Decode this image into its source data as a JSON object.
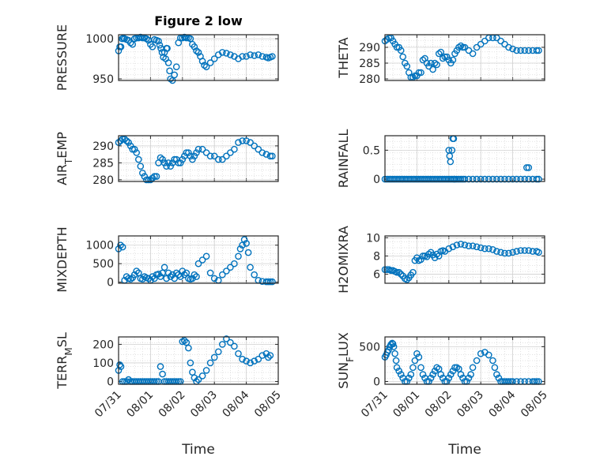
{
  "chart_data": [
    {
      "type": "scatter",
      "title": "Figure 2 low",
      "ylabel": "PRESSURE",
      "ylabel_parts": [
        {
          "t": "PRESSURE"
        }
      ],
      "ylim": [
        948,
        1005
      ],
      "yticks": [
        1000,
        950
      ],
      "ytick_labels": [
        "1000",
        "950"
      ],
      "xlim": [
        0,
        4
      ],
      "xtick_labels": [],
      "grid": true,
      "marker_color": "#0072BD",
      "x": [
        0.0,
        0.03,
        0.06,
        0.09,
        0.12,
        0.15,
        0.2,
        0.25,
        0.3,
        0.35,
        0.4,
        0.45,
        0.5,
        0.55,
        0.6,
        0.65,
        0.7,
        0.75,
        0.8,
        0.85,
        0.9,
        0.95,
        1.0,
        1.03,
        1.06,
        1.09,
        1.12,
        1.15,
        1.18,
        1.2,
        1.22,
        1.25,
        1.28,
        1.3,
        1.35,
        1.4,
        1.45,
        1.5,
        1.55,
        1.6,
        1.65,
        1.7,
        1.75,
        1.8,
        1.85,
        1.9,
        1.95,
        2.0,
        2.05,
        2.1,
        2.15,
        2.2,
        2.3,
        2.4,
        2.5,
        2.6,
        2.7,
        2.8,
        2.9,
        3.0,
        3.1,
        3.2,
        3.3,
        3.4,
        3.5,
        3.6,
        3.7,
        3.75,
        3.8,
        3.85
      ],
      "y": [
        985,
        990,
        990,
        1000,
        1001,
        1000,
        999,
        998,
        995,
        993,
        1000,
        1001,
        1001,
        1002,
        1001,
        1001,
        1000,
        998,
        993,
        990,
        999,
        998,
        997,
        992,
        988,
        983,
        977,
        983,
        975,
        988,
        988,
        970,
        960,
        950,
        948,
        955,
        965,
        995,
        1001,
        1001,
        1002,
        1001,
        1001,
        1000,
        993,
        990,
        985,
        983,
        978,
        972,
        967,
        965,
        970,
        975,
        980,
        983,
        982,
        980,
        978,
        975,
        978,
        978,
        980,
        979,
        980,
        978,
        977,
        976,
        977,
        978
      ]
    },
    {
      "type": "scatter",
      "title": "",
      "ylabel": "THETA",
      "ylabel_parts": [
        {
          "t": "THETA"
        }
      ],
      "ylim": [
        279.5,
        294
      ],
      "yticks": [
        290,
        285,
        280
      ],
      "ytick_labels": [
        "290",
        "285",
        "280"
      ],
      "xlim": [
        0,
        4
      ],
      "xtick_labels": [],
      "grid": true,
      "marker_color": "#0072BD",
      "x": [
        0.0,
        0.05,
        0.1,
        0.15,
        0.2,
        0.25,
        0.3,
        0.35,
        0.4,
        0.45,
        0.5,
        0.55,
        0.6,
        0.65,
        0.7,
        0.75,
        0.8,
        0.85,
        0.9,
        0.95,
        1.0,
        1.05,
        1.1,
        1.15,
        1.2,
        1.25,
        1.3,
        1.35,
        1.4,
        1.45,
        1.5,
        1.55,
        1.6,
        1.65,
        1.7,
        1.75,
        1.8,
        1.85,
        1.9,
        1.95,
        2.0,
        2.1,
        2.2,
        2.3,
        2.4,
        2.5,
        2.6,
        2.7,
        2.8,
        2.9,
        3.0,
        3.1,
        3.2,
        3.3,
        3.4,
        3.5,
        3.6,
        3.7,
        3.8,
        3.85
      ],
      "y": [
        292,
        292.5,
        293,
        293,
        292,
        291,
        290,
        290,
        289,
        287,
        285,
        284,
        282,
        280.5,
        280.5,
        281,
        281,
        282,
        282,
        286,
        286.5,
        285,
        284,
        285,
        283,
        285,
        284.5,
        288,
        288.5,
        286.5,
        287,
        287,
        286,
        285,
        286,
        288,
        289,
        290,
        290.5,
        290,
        290,
        289,
        288,
        290,
        291,
        292,
        293,
        293,
        293,
        292,
        291,
        290,
        289.5,
        289,
        289,
        289,
        289,
        289,
        289,
        289
      ]
    },
    {
      "type": "scatter",
      "title": "",
      "ylabel": "AIR_TEMP",
      "ylabel_parts": [
        {
          "t": "AIR"
        },
        {
          "t": "T",
          "sub": true
        },
        {
          "t": "EMP"
        }
      ],
      "ylim": [
        279.5,
        293
      ],
      "yticks": [
        290,
        285,
        280
      ],
      "ytick_labels": [
        "290",
        "285",
        "280"
      ],
      "xlim": [
        0,
        4
      ],
      "xtick_labels": [],
      "grid": true,
      "marker_color": "#0072BD",
      "x": [
        0.0,
        0.05,
        0.1,
        0.15,
        0.2,
        0.25,
        0.3,
        0.35,
        0.4,
        0.45,
        0.5,
        0.55,
        0.6,
        0.65,
        0.7,
        0.75,
        0.8,
        0.85,
        0.9,
        0.95,
        1.0,
        1.05,
        1.1,
        1.15,
        1.2,
        1.25,
        1.3,
        1.35,
        1.4,
        1.45,
        1.5,
        1.55,
        1.6,
        1.65,
        1.7,
        1.75,
        1.8,
        1.85,
        1.9,
        1.95,
        2.0,
        2.1,
        2.2,
        2.3,
        2.4,
        2.5,
        2.6,
        2.7,
        2.8,
        2.9,
        3.0,
        3.1,
        3.2,
        3.3,
        3.4,
        3.5,
        3.6,
        3.7,
        3.8,
        3.85
      ],
      "y": [
        291,
        291.5,
        292,
        292,
        291.5,
        291,
        290,
        289,
        289,
        288,
        286,
        284,
        282,
        281,
        280,
        280,
        280,
        280.5,
        281,
        281,
        285,
        286.5,
        286,
        285,
        284,
        285,
        284,
        285,
        286,
        286,
        285,
        285,
        286,
        287,
        288,
        288,
        287,
        286,
        287,
        288,
        289,
        289,
        288,
        287,
        287,
        286,
        286,
        287,
        288,
        289,
        291,
        291.5,
        291.5,
        291,
        290,
        289,
        288,
        287.5,
        287,
        287
      ]
    },
    {
      "type": "scatter",
      "title": "",
      "ylabel": "RAINFALL",
      "ylabel_parts": [
        {
          "t": "RAINFALL"
        }
      ],
      "ylim": [
        -0.04,
        0.75
      ],
      "yticks": [
        0.5,
        0
      ],
      "ytick_labels": [
        "0.5",
        "0"
      ],
      "xlim": [
        0,
        4
      ],
      "xtick_labels": [],
      "grid": true,
      "marker_color": "#0072BD",
      "x": [
        0.0,
        0.05,
        0.1,
        0.15,
        0.2,
        0.25,
        0.3,
        0.35,
        0.4,
        0.45,
        0.5,
        0.55,
        0.6,
        0.65,
        0.7,
        0.75,
        0.8,
        0.85,
        0.9,
        0.95,
        1.0,
        1.05,
        1.1,
        1.15,
        1.2,
        1.25,
        1.3,
        1.35,
        1.4,
        1.45,
        1.5,
        1.55,
        1.6,
        1.65,
        1.7,
        1.75,
        1.8,
        1.85,
        1.9,
        1.95,
        2.0,
        2.1,
        2.2,
        2.3,
        2.4,
        2.5,
        2.6,
        2.7,
        2.8,
        2.9,
        3.0,
        3.1,
        3.2,
        3.3,
        3.4,
        3.5,
        3.6,
        3.7,
        3.8,
        3.85,
        1.6,
        1.62,
        1.64,
        1.68,
        1.7,
        1.72,
        1.74,
        3.55,
        3.6
      ],
      "y": [
        0,
        0,
        0,
        0,
        0,
        0,
        0,
        0,
        0,
        0,
        0,
        0,
        0,
        0,
        0,
        0,
        0,
        0,
        0,
        0,
        0,
        0,
        0,
        0,
        0,
        0,
        0,
        0,
        0,
        0,
        0,
        0,
        0,
        0,
        0,
        0,
        0,
        0,
        0,
        0,
        0,
        0,
        0,
        0,
        0,
        0,
        0,
        0,
        0,
        0,
        0,
        0,
        0,
        0,
        0,
        0,
        0,
        0,
        0,
        0,
        0.5,
        0.4,
        0.3,
        0.5,
        0.7,
        0.7,
        0.0,
        0.2,
        0.2
      ]
    },
    {
      "type": "scatter",
      "title": "",
      "ylabel": "MIXDEPTH",
      "ylabel_parts": [
        {
          "t": "MIXDEPTH"
        }
      ],
      "ylim": [
        -30,
        1250
      ],
      "yticks": [
        1000,
        500,
        0
      ],
      "ytick_labels": [
        "1000",
        "500",
        "0"
      ],
      "xlim": [
        0,
        4
      ],
      "xtick_labels": [],
      "grid": true,
      "marker_color": "#0072BD",
      "x": [
        0.0,
        0.05,
        0.1,
        0.15,
        0.2,
        0.25,
        0.3,
        0.35,
        0.4,
        0.45,
        0.5,
        0.55,
        0.6,
        0.65,
        0.7,
        0.75,
        0.8,
        0.85,
        0.9,
        0.95,
        1.0,
        1.05,
        1.1,
        1.15,
        1.2,
        1.25,
        1.3,
        1.35,
        1.4,
        1.45,
        1.5,
        1.55,
        1.6,
        1.65,
        1.7,
        1.75,
        1.8,
        1.85,
        1.9,
        1.95,
        2.0,
        2.1,
        2.2,
        2.3,
        2.4,
        2.5,
        2.6,
        2.7,
        2.8,
        2.9,
        3.0,
        3.05,
        3.1,
        3.15,
        3.2,
        3.25,
        3.3,
        3.4,
        3.5,
        3.6,
        3.7,
        3.75,
        3.8,
        3.85
      ],
      "y": [
        900,
        1000,
        950,
        50,
        150,
        100,
        80,
        120,
        200,
        300,
        250,
        100,
        80,
        150,
        120,
        100,
        50,
        150,
        100,
        200,
        220,
        150,
        250,
        400,
        100,
        250,
        150,
        200,
        100,
        250,
        200,
        150,
        300,
        200,
        250,
        100,
        80,
        100,
        200,
        150,
        500,
        600,
        700,
        250,
        100,
        50,
        200,
        300,
        400,
        500,
        700,
        900,
        1000,
        1150,
        1050,
        800,
        400,
        200,
        50,
        20,
        10,
        10,
        10,
        10
      ]
    },
    {
      "type": "scatter",
      "title": "",
      "ylabel": "H2OMIXRA",
      "ylabel_parts": [
        {
          "t": "H2OMIXRA"
        }
      ],
      "ylim": [
        5,
        10.2
      ],
      "yticks": [
        10,
        8,
        6
      ],
      "ytick_labels": [
        "10",
        "8",
        "6"
      ],
      "xlim": [
        0,
        4
      ],
      "xtick_labels": [],
      "grid": true,
      "marker_color": "#0072BD",
      "x": [
        0.0,
        0.05,
        0.1,
        0.15,
        0.2,
        0.25,
        0.3,
        0.35,
        0.4,
        0.45,
        0.5,
        0.55,
        0.6,
        0.65,
        0.7,
        0.75,
        0.8,
        0.85,
        0.9,
        0.95,
        1.0,
        1.05,
        1.1,
        1.15,
        1.2,
        1.25,
        1.3,
        1.35,
        1.4,
        1.45,
        1.5,
        1.6,
        1.7,
        1.8,
        1.9,
        2.0,
        2.1,
        2.2,
        2.3,
        2.4,
        2.5,
        2.6,
        2.7,
        2.8,
        2.9,
        3.0,
        3.1,
        3.2,
        3.3,
        3.4,
        3.5,
        3.6,
        3.7,
        3.8,
        3.85
      ],
      "y": [
        6.5,
        6.5,
        6.5,
        6.4,
        6.4,
        6.3,
        6.2,
        6.2,
        6.0,
        5.8,
        5.5,
        5.4,
        5.6,
        5.9,
        6.2,
        7.5,
        7.8,
        7.5,
        7.6,
        8.0,
        8.0,
        7.9,
        8.2,
        8.4,
        8.1,
        7.8,
        8.2,
        8.0,
        8.5,
        8.6,
        8.5,
        8.8,
        9.0,
        9.2,
        9.3,
        9.2,
        9.1,
        9.1,
        9.0,
        8.9,
        8.8,
        8.8,
        8.7,
        8.5,
        8.4,
        8.3,
        8.3,
        8.4,
        8.5,
        8.6,
        8.6,
        8.6,
        8.5,
        8.5,
        8.4
      ]
    },
    {
      "type": "scatter",
      "title": "",
      "ylabel": "TERR_MSL",
      "ylabel_parts": [
        {
          "t": "TERR"
        },
        {
          "t": "M",
          "sub": true
        },
        {
          "t": "SL"
        }
      ],
      "ylim": [
        -15,
        240
      ],
      "yticks": [
        200,
        100,
        0
      ],
      "ytick_labels": [
        "200",
        "100",
        "0"
      ],
      "xlim": [
        0,
        4
      ],
      "xtick_labels": [
        "07/31",
        "08/01",
        "08/02",
        "08/03",
        "08/04",
        "08/05"
      ],
      "xlabel": "Time",
      "grid": true,
      "marker_color": "#0072BD",
      "x": [
        0.0,
        0.03,
        0.06,
        0.1,
        0.15,
        0.2,
        0.25,
        0.3,
        0.35,
        0.4,
        0.45,
        0.5,
        0.55,
        0.6,
        0.65,
        0.7,
        0.75,
        0.8,
        0.85,
        0.9,
        0.95,
        1.0,
        1.05,
        1.1,
        1.15,
        1.2,
        1.25,
        1.3,
        1.35,
        1.4,
        1.45,
        1.5,
        1.55,
        1.6,
        1.65,
        1.7,
        1.75,
        1.8,
        1.85,
        1.9,
        1.95,
        2.0,
        2.1,
        2.2,
        2.3,
        2.4,
        2.5,
        2.6,
        2.7,
        2.8,
        2.9,
        3.0,
        3.1,
        3.2,
        3.3,
        3.4,
        3.5,
        3.6,
        3.7,
        3.75,
        3.8
      ],
      "y": [
        60,
        90,
        80,
        0,
        0,
        0,
        10,
        0,
        0,
        0,
        0,
        0,
        0,
        0,
        0,
        0,
        0,
        0,
        0,
        0,
        0,
        0,
        80,
        40,
        0,
        0,
        0,
        0,
        0,
        0,
        0,
        0,
        0,
        215,
        220,
        210,
        180,
        100,
        50,
        20,
        0,
        10,
        30,
        60,
        100,
        130,
        160,
        200,
        230,
        210,
        190,
        150,
        120,
        110,
        100,
        110,
        120,
        140,
        150,
        130,
        140
      ]
    },
    {
      "type": "scatter",
      "title": "",
      "ylabel": "SUN_FLUX",
      "ylabel_parts": [
        {
          "t": "SUN"
        },
        {
          "t": "F",
          "sub": true
        },
        {
          "t": "LUX"
        }
      ],
      "ylim": [
        -40,
        640
      ],
      "yticks": [
        500,
        0
      ],
      "ytick_labels": [
        "500",
        "0"
      ],
      "xlim": [
        0,
        4
      ],
      "xtick_labels": [
        "07/31",
        "08/01",
        "08/02",
        "08/03",
        "08/04",
        "08/05"
      ],
      "xlabel": "Time",
      "grid": true,
      "marker_color": "#0072BD",
      "x": [
        0.0,
        0.03,
        0.06,
        0.09,
        0.12,
        0.15,
        0.18,
        0.2,
        0.22,
        0.25,
        0.28,
        0.3,
        0.35,
        0.4,
        0.45,
        0.5,
        0.55,
        0.6,
        0.65,
        0.7,
        0.75,
        0.8,
        0.85,
        0.9,
        0.95,
        1.0,
        1.05,
        1.1,
        1.15,
        1.2,
        1.25,
        1.3,
        1.35,
        1.4,
        1.45,
        1.5,
        1.55,
        1.6,
        1.65,
        1.7,
        1.75,
        1.8,
        1.85,
        1.9,
        1.95,
        2.0,
        2.05,
        2.1,
        2.15,
        2.2,
        2.3,
        2.4,
        2.5,
        2.6,
        2.7,
        2.75,
        2.8,
        2.85,
        2.9,
        2.95,
        3.0,
        3.05,
        3.1,
        3.15,
        3.2,
        3.3,
        3.4,
        3.5,
        3.6,
        3.7,
        3.75,
        3.8,
        3.85
      ],
      "y": [
        350,
        380,
        420,
        450,
        500,
        530,
        550,
        540,
        500,
        400,
        300,
        200,
        150,
        100,
        50,
        0,
        0,
        50,
        100,
        200,
        300,
        400,
        350,
        200,
        100,
        50,
        0,
        0,
        50,
        100,
        150,
        200,
        180,
        100,
        50,
        0,
        0,
        50,
        100,
        150,
        200,
        200,
        180,
        100,
        50,
        0,
        0,
        50,
        100,
        200,
        300,
        400,
        420,
        380,
        300,
        200,
        100,
        50,
        0,
        0,
        0,
        0,
        0,
        0,
        0,
        0,
        0,
        0,
        0,
        0,
        0,
        0,
        0
      ]
    }
  ]
}
